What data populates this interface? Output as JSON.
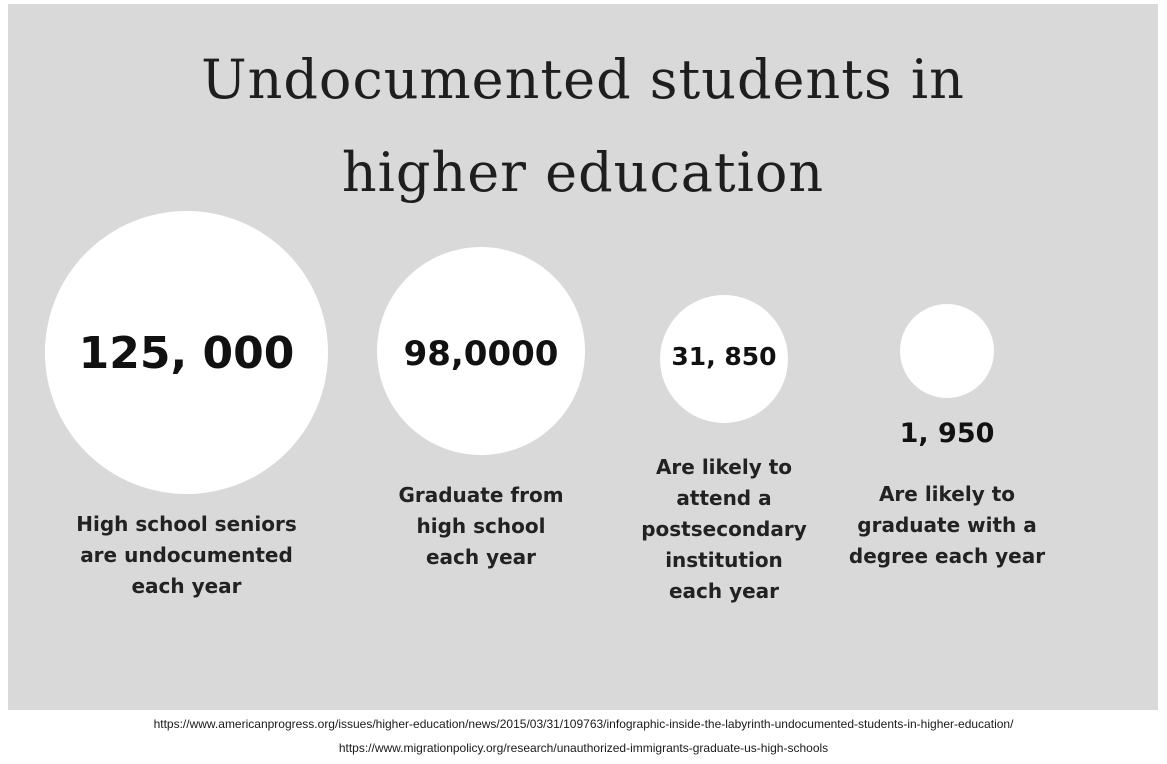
{
  "title": {
    "line1": "Undocumented students in",
    "line2": "higher education"
  },
  "stats": [
    {
      "value": "125, 000",
      "description": [
        "High school seniors",
        "are undocumented",
        "each year"
      ]
    },
    {
      "value": "98,0000",
      "description": [
        "Graduate from",
        "high school",
        "each year"
      ]
    },
    {
      "value": "31, 850",
      "description": [
        "Are likely to",
        "attend a",
        "postsecondary",
        "institution",
        "each year"
      ]
    },
    {
      "value": "1, 950",
      "description": [
        "Are likely to",
        "graduate with a",
        "degree each year"
      ]
    }
  ],
  "sources": [
    "https://www.americanprogress.org/issues/higher-education/news/2015/03/31/109763/infographic-inside-the-labyrinth-undocumented-students-in-higher-education/",
    "https://www.migrationpolicy.org/research/unauthorized-immigrants-graduate-us-high-schools"
  ],
  "colors": {
    "background": "#d9d9d9",
    "circle": "#ffffff",
    "text": "#111111"
  }
}
